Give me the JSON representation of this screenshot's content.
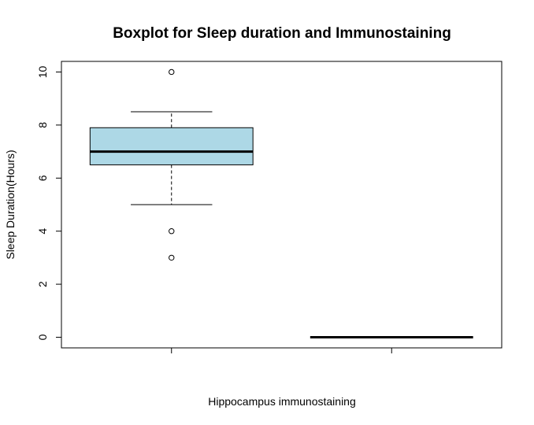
{
  "chart_data": {
    "type": "boxplot",
    "title": "Boxplot for Sleep duration and Immunostaining",
    "xlabel": "Hippocampus immunostaining",
    "ylabel": "Sleep Duration(Hours)",
    "ylim": [
      -0.4,
      10.4
    ],
    "yticks": [
      0,
      2,
      4,
      6,
      8,
      10
    ],
    "grid": false,
    "box_fill": "#add8e6",
    "boxes": [
      {
        "lower_whisker": 5,
        "q1": 6.5,
        "median": 7,
        "q3": 7.9,
        "upper_whisker": 8.5,
        "outliers": [
          10,
          4,
          3
        ]
      },
      {
        "lower_whisker": 0,
        "q1": 0,
        "median": 0,
        "q3": 0,
        "upper_whisker": 0,
        "outliers": []
      }
    ]
  }
}
